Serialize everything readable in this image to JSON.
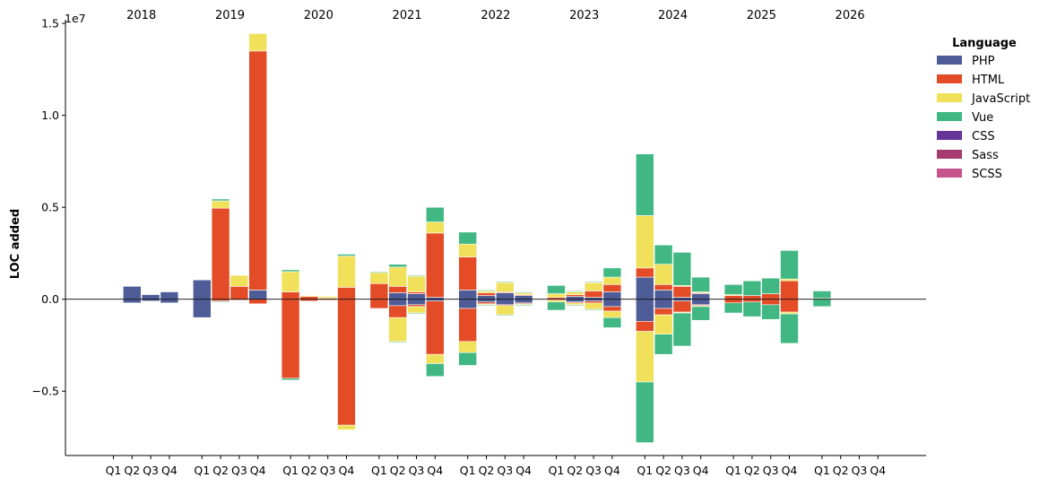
{
  "chart_data": {
    "type": "bar",
    "stacked": true,
    "diverging": true,
    "ylabel": "LOC added",
    "y_offset_text": "1e7",
    "ylim": [
      -0.85,
      1.52
    ],
    "y_ticks": [
      -0.5,
      0.0,
      0.5,
      1.0,
      1.5
    ],
    "y_tick_labels": [
      "−0.5",
      "0.0",
      "0.5",
      "1.0",
      "1.5"
    ],
    "y_unit_multiplier": 10000000,
    "years": [
      "2018",
      "2019",
      "2020",
      "2021",
      "2022",
      "2023",
      "2024",
      "2025",
      "2026"
    ],
    "quarters": [
      "Q1",
      "Q2",
      "Q3",
      "Q4"
    ],
    "legend": {
      "title": "Language",
      "placement": "top-right-outside",
      "entries": [
        {
          "name": "PHP",
          "color": "#4e5c97"
        },
        {
          "name": "HTML",
          "color": "#e34c26"
        },
        {
          "name": "JavaScript",
          "color": "#f1e05a"
        },
        {
          "name": "Vue",
          "color": "#41b883"
        },
        {
          "name": "CSS",
          "color": "#663399"
        },
        {
          "name": "Sass",
          "color": "#a53b70"
        },
        {
          "name": "SCSS",
          "color": "#c6538c"
        }
      ]
    },
    "series_order": [
      "PHP",
      "HTML",
      "JavaScript",
      "Vue",
      "CSS",
      "Sass",
      "SCSS"
    ],
    "bars": [
      {
        "year": "2018",
        "quarter": "Q1",
        "pos": [],
        "neg": []
      },
      {
        "year": "2018",
        "quarter": "Q2",
        "pos": [
          0.07
        ],
        "neg": [
          -0.02
        ]
      },
      {
        "year": "2018",
        "quarter": "Q3",
        "pos": [
          0.025
        ],
        "neg": [
          -0.01
        ]
      },
      {
        "year": "2018",
        "quarter": "Q4",
        "pos": [
          0.04
        ],
        "neg": [
          -0.02
        ]
      },
      {
        "year": "2019",
        "quarter": "Q1",
        "pos": [
          0.105
        ],
        "neg": [
          -0.1
        ]
      },
      {
        "year": "2019",
        "quarter": "Q2",
        "pos": [
          0,
          0.495,
          0.04,
          0.01
        ],
        "neg": [
          0,
          -0.01,
          0,
          -0.005
        ]
      },
      {
        "year": "2019",
        "quarter": "Q3",
        "pos": [
          0,
          0.07,
          0.06
        ],
        "neg": [
          0,
          -0.005
        ]
      },
      {
        "year": "2019",
        "quarter": "Q4",
        "pos": [
          0.05,
          1.3,
          0.095
        ],
        "neg": [
          0,
          -0.025
        ]
      },
      {
        "year": "2020",
        "quarter": "Q1",
        "pos": [
          0,
          0.04,
          0.11,
          0.01
        ],
        "neg": [
          0,
          -0.43,
          0,
          -0.01
        ]
      },
      {
        "year": "2020",
        "quarter": "Q2",
        "pos": [
          0,
          0.015,
          0.005
        ],
        "neg": [
          0,
          -0.01
        ]
      },
      {
        "year": "2020",
        "quarter": "Q3",
        "pos": [
          0,
          0.005,
          0.01
        ],
        "neg": [
          0,
          -0.005
        ]
      },
      {
        "year": "2020",
        "quarter": "Q4",
        "pos": [
          0,
          0.065,
          0.17,
          0.01
        ],
        "neg": [
          0,
          -0.685,
          -0.025
        ]
      },
      {
        "year": "2021",
        "quarter": "Q1",
        "pos": [
          0,
          0.085,
          0.06,
          0.005
        ],
        "neg": [
          0,
          -0.05
        ]
      },
      {
        "year": "2021",
        "quarter": "Q2",
        "pos": [
          0.035,
          0.035,
          0.105,
          0.015
        ],
        "neg": [
          -0.035,
          -0.065,
          -0.13,
          -0.005
        ]
      },
      {
        "year": "2021",
        "quarter": "Q3",
        "pos": [
          0.03,
          0.01,
          0.085,
          0.005
        ],
        "neg": [
          -0.03,
          -0.01,
          -0.035,
          -0.005
        ]
      },
      {
        "year": "2021",
        "quarter": "Q4",
        "pos": [
          0.01,
          0.35,
          0.06,
          0.08
        ],
        "neg": [
          -0.01,
          -0.29,
          -0.05,
          -0.07
        ]
      },
      {
        "year": "2022",
        "quarter": "Q1",
        "pos": [
          0.05,
          0.18,
          0.07,
          0.065
        ],
        "neg": [
          -0.05,
          -0.18,
          -0.06,
          -0.07
        ]
      },
      {
        "year": "2022",
        "quarter": "Q2",
        "pos": [
          0.02,
          0.015,
          0.01,
          0.005
        ],
        "neg": [
          -0.015,
          -0.01,
          -0.005,
          -0.005
        ]
      },
      {
        "year": "2022",
        "quarter": "Q3",
        "pos": [
          0.035,
          0.005,
          0.05,
          0.005
        ],
        "neg": [
          -0.03,
          -0.005,
          -0.05,
          -0.005
        ]
      },
      {
        "year": "2022",
        "quarter": "Q4",
        "pos": [
          0.02,
          0.005,
          0.01,
          0.005
        ],
        "neg": [
          -0.02,
          -0.005,
          -0.005,
          -0.005
        ]
      },
      {
        "year": "2023",
        "quarter": "Q1",
        "pos": [
          0,
          0.01,
          0.02,
          0.045
        ],
        "neg": [
          0,
          -0.005,
          -0.01,
          -0.045
        ]
      },
      {
        "year": "2023",
        "quarter": "Q2",
        "pos": [
          0.015,
          0.01,
          0.015,
          0.005
        ],
        "neg": [
          -0.015,
          -0.005,
          -0.01,
          -0.005
        ]
      },
      {
        "year": "2023",
        "quarter": "Q3",
        "pos": [
          0.01,
          0.035,
          0.045,
          0.005
        ],
        "neg": [
          -0.01,
          -0.01,
          -0.035,
          -0.005
        ]
      },
      {
        "year": "2023",
        "quarter": "Q4",
        "pos": [
          0.04,
          0.04,
          0.04,
          0.05
        ],
        "neg": [
          -0.04,
          -0.025,
          -0.035,
          -0.055
        ]
      },
      {
        "year": "2024",
        "quarter": "Q1",
        "pos": [
          0.12,
          0.05,
          0.285,
          0.335
        ],
        "neg": [
          -0.12,
          -0.055,
          -0.275,
          -0.33
        ]
      },
      {
        "year": "2024",
        "quarter": "Q2",
        "pos": [
          0.05,
          0.03,
          0.11,
          0.105
        ],
        "neg": [
          -0.05,
          -0.035,
          -0.105,
          -0.11
        ]
      },
      {
        "year": "2024",
        "quarter": "Q3",
        "pos": [
          0.01,
          0.06,
          0.005,
          0.18
        ],
        "neg": [
          -0.01,
          -0.06,
          -0.005,
          -0.18
        ]
      },
      {
        "year": "2024",
        "quarter": "Q4",
        "pos": [
          0.03,
          0.005,
          0.005,
          0.08
        ],
        "neg": [
          -0.03,
          -0.005,
          -0.005,
          -0.075
        ]
      },
      {
        "year": "2025",
        "quarter": "Q1",
        "pos": [
          0,
          0.02,
          0.005,
          0.055
        ],
        "neg": [
          0,
          -0.02,
          0,
          -0.055
        ]
      },
      {
        "year": "2025",
        "quarter": "Q2",
        "pos": [
          0,
          0.02,
          0,
          0.08
        ],
        "neg": [
          0,
          -0.015,
          0,
          -0.08
        ]
      },
      {
        "year": "2025",
        "quarter": "Q3",
        "pos": [
          0,
          0.03,
          0,
          0.085
        ],
        "neg": [
          0,
          -0.03,
          0,
          -0.08
        ]
      },
      {
        "year": "2025",
        "quarter": "Q4",
        "pos": [
          0,
          0.1,
          0.01,
          0.155
        ],
        "neg": [
          0,
          -0.07,
          -0.01,
          -0.16
        ]
      },
      {
        "year": "2026",
        "quarter": "Q1",
        "pos": [
          0,
          0,
          0.005,
          0.04
        ],
        "neg": [
          0,
          0,
          0,
          -0.04
        ]
      },
      {
        "year": "2026",
        "quarter": "Q2",
        "pos": [],
        "neg": []
      },
      {
        "year": "2026",
        "quarter": "Q3",
        "pos": [],
        "neg": []
      },
      {
        "year": "2026",
        "quarter": "Q4",
        "pos": [],
        "neg": []
      }
    ]
  }
}
